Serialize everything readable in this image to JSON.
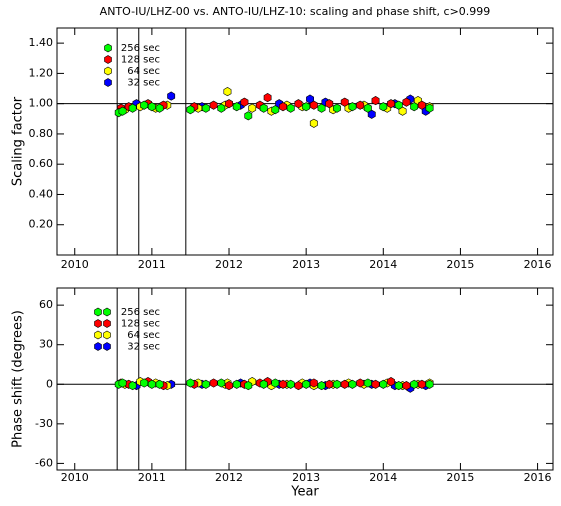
{
  "chart_data": [
    {
      "type": "scatter",
      "title": "ANTO-IU/LHZ-00 vs. ANTO-IU/LHZ-10: scaling and phase shift, c>0.999",
      "ylabel": "Scaling factor",
      "xlim": [
        2009.77,
        2016.2
      ],
      "ylim": [
        0,
        1.5
      ],
      "xticks": [
        2010,
        2011,
        2012,
        2013,
        2014,
        2015,
        2016
      ],
      "yticks": [
        {
          "value": 0.2,
          "label": "0.20"
        },
        {
          "value": 0.4,
          "label": "0.40"
        },
        {
          "value": 0.6,
          "label": "0.60"
        },
        {
          "value": 0.8,
          "label": "0.80"
        },
        {
          "value": 1.0,
          "label": "1.00"
        },
        {
          "value": 1.2,
          "label": "1.20"
        },
        {
          "value": 1.4,
          "label": "1.40"
        }
      ],
      "vlines": [
        2010.55,
        2010.83,
        2011.44
      ],
      "hlines": [
        1.0
      ],
      "series": [
        {
          "name": "256 sec",
          "color": "#00ff00",
          "x": [
            2010.57,
            2010.62,
            2010.75,
            2010.9,
            2011.0,
            2011.1,
            2011.5,
            2011.7,
            2011.9,
            2012.1,
            2012.25,
            2012.45,
            2012.6,
            2012.8,
            2013.0,
            2013.2,
            2013.4,
            2013.6,
            2013.8,
            2014.0,
            2014.2,
            2014.4,
            2014.6
          ],
          "values": [
            0.94,
            0.95,
            0.97,
            0.99,
            0.98,
            0.97,
            0.96,
            0.97,
            0.97,
            0.98,
            0.92,
            0.97,
            0.96,
            0.97,
            0.98,
            0.97,
            0.97,
            0.98,
            0.97,
            0.98,
            0.99,
            0.98,
            0.97
          ]
        },
        {
          "name": "128 sec",
          "color": "#ff0000",
          "x": [
            2010.6,
            2010.7,
            2010.95,
            2011.15,
            2011.55,
            2011.8,
            2012.0,
            2012.2,
            2012.4,
            2012.5,
            2012.7,
            2012.9,
            2013.1,
            2013.3,
            2013.5,
            2013.7,
            2013.9,
            2014.1,
            2014.3,
            2014.5
          ],
          "values": [
            0.97,
            0.98,
            1.0,
            0.99,
            0.98,
            0.99,
            1.0,
            1.01,
            0.99,
            1.04,
            0.98,
            1.0,
            0.99,
            1.0,
            1.01,
            0.99,
            1.02,
            1.0,
            1.01,
            0.99
          ]
        },
        {
          "name": "64 sec",
          "color": "#ffff00",
          "x": [
            2010.65,
            2010.85,
            2011.05,
            2011.2,
            2011.6,
            2011.95,
            2011.98,
            2012.3,
            2012.55,
            2012.75,
            2012.95,
            2013.1,
            2013.35,
            2013.55,
            2013.75,
            2014.05,
            2014.25,
            2014.45,
            2014.6
          ],
          "values": [
            0.96,
            0.98,
            0.97,
            0.99,
            0.97,
            0.99,
            1.08,
            0.97,
            0.95,
            0.99,
            0.98,
            0.87,
            0.96,
            0.97,
            0.99,
            0.97,
            0.95,
            1.02,
            0.98
          ]
        },
        {
          "name": "32 sec",
          "color": "#0000ff",
          "x": [
            2010.8,
            2011.25,
            2011.65,
            2012.15,
            2012.65,
            2013.05,
            2013.25,
            2013.85,
            2014.15,
            2014.35,
            2014.55
          ],
          "values": [
            1.0,
            1.05,
            0.98,
            0.99,
            1.0,
            1.03,
            1.01,
            0.93,
            1.0,
            1.03,
            0.95
          ]
        }
      ]
    },
    {
      "type": "scatter",
      "ylabel": "Phase shift (degrees)",
      "xlabel": "Year",
      "xlim": [
        2009.77,
        2016.2
      ],
      "ylim": [
        -65,
        73
      ],
      "xticks": [
        2010,
        2011,
        2012,
        2013,
        2014,
        2015,
        2016
      ],
      "yticks": [
        -60,
        -30,
        0,
        30,
        60
      ],
      "vlines": [
        2010.55,
        2010.83,
        2011.44
      ],
      "hlines": [
        0
      ],
      "series": [
        {
          "name": "256 sec",
          "color": "#00ff00",
          "x": [
            2010.57,
            2010.62,
            2010.75,
            2010.9,
            2011.0,
            2011.1,
            2011.5,
            2011.7,
            2011.9,
            2012.1,
            2012.25,
            2012.45,
            2012.6,
            2012.8,
            2013.0,
            2013.2,
            2013.4,
            2013.6,
            2013.8,
            2014.0,
            2014.2,
            2014.4,
            2014.6
          ],
          "values": [
            0,
            1,
            -1,
            1,
            0,
            0,
            1,
            0,
            1,
            0,
            -1,
            0,
            1,
            0,
            0,
            -1,
            0,
            0,
            1,
            0,
            -1,
            0,
            0
          ]
        },
        {
          "name": "128 sec",
          "color": "#ff0000",
          "x": [
            2010.6,
            2010.7,
            2010.95,
            2011.15,
            2011.55,
            2011.8,
            2012.0,
            2012.2,
            2012.4,
            2012.5,
            2012.7,
            2012.9,
            2013.1,
            2013.3,
            2013.5,
            2013.7,
            2013.9,
            2014.1,
            2014.3,
            2014.5
          ],
          "values": [
            1,
            0,
            2,
            -1,
            0,
            1,
            -1,
            0,
            1,
            2,
            0,
            -1,
            1,
            0,
            0,
            1,
            0,
            2,
            -1,
            0
          ]
        },
        {
          "name": "64 sec",
          "color": "#ffff00",
          "x": [
            2010.65,
            2010.85,
            2011.05,
            2011.2,
            2011.6,
            2011.95,
            2011.98,
            2012.3,
            2012.55,
            2012.75,
            2012.95,
            2013.1,
            2013.35,
            2013.55,
            2013.75,
            2014.05,
            2014.25,
            2014.45,
            2014.6
          ],
          "values": [
            0,
            2,
            1,
            -1,
            1,
            0,
            1,
            2,
            -1,
            0,
            1,
            -1,
            0,
            1,
            0,
            1,
            -1,
            0,
            1
          ]
        },
        {
          "name": "32 sec",
          "color": "#0000ff",
          "x": [
            2010.8,
            2011.25,
            2011.65,
            2012.15,
            2012.65,
            2013.05,
            2013.25,
            2013.85,
            2014.15,
            2014.35,
            2014.55
          ],
          "values": [
            -1,
            0,
            0,
            1,
            0,
            1,
            -1,
            0,
            -1,
            -3,
            -1
          ]
        }
      ]
    }
  ]
}
